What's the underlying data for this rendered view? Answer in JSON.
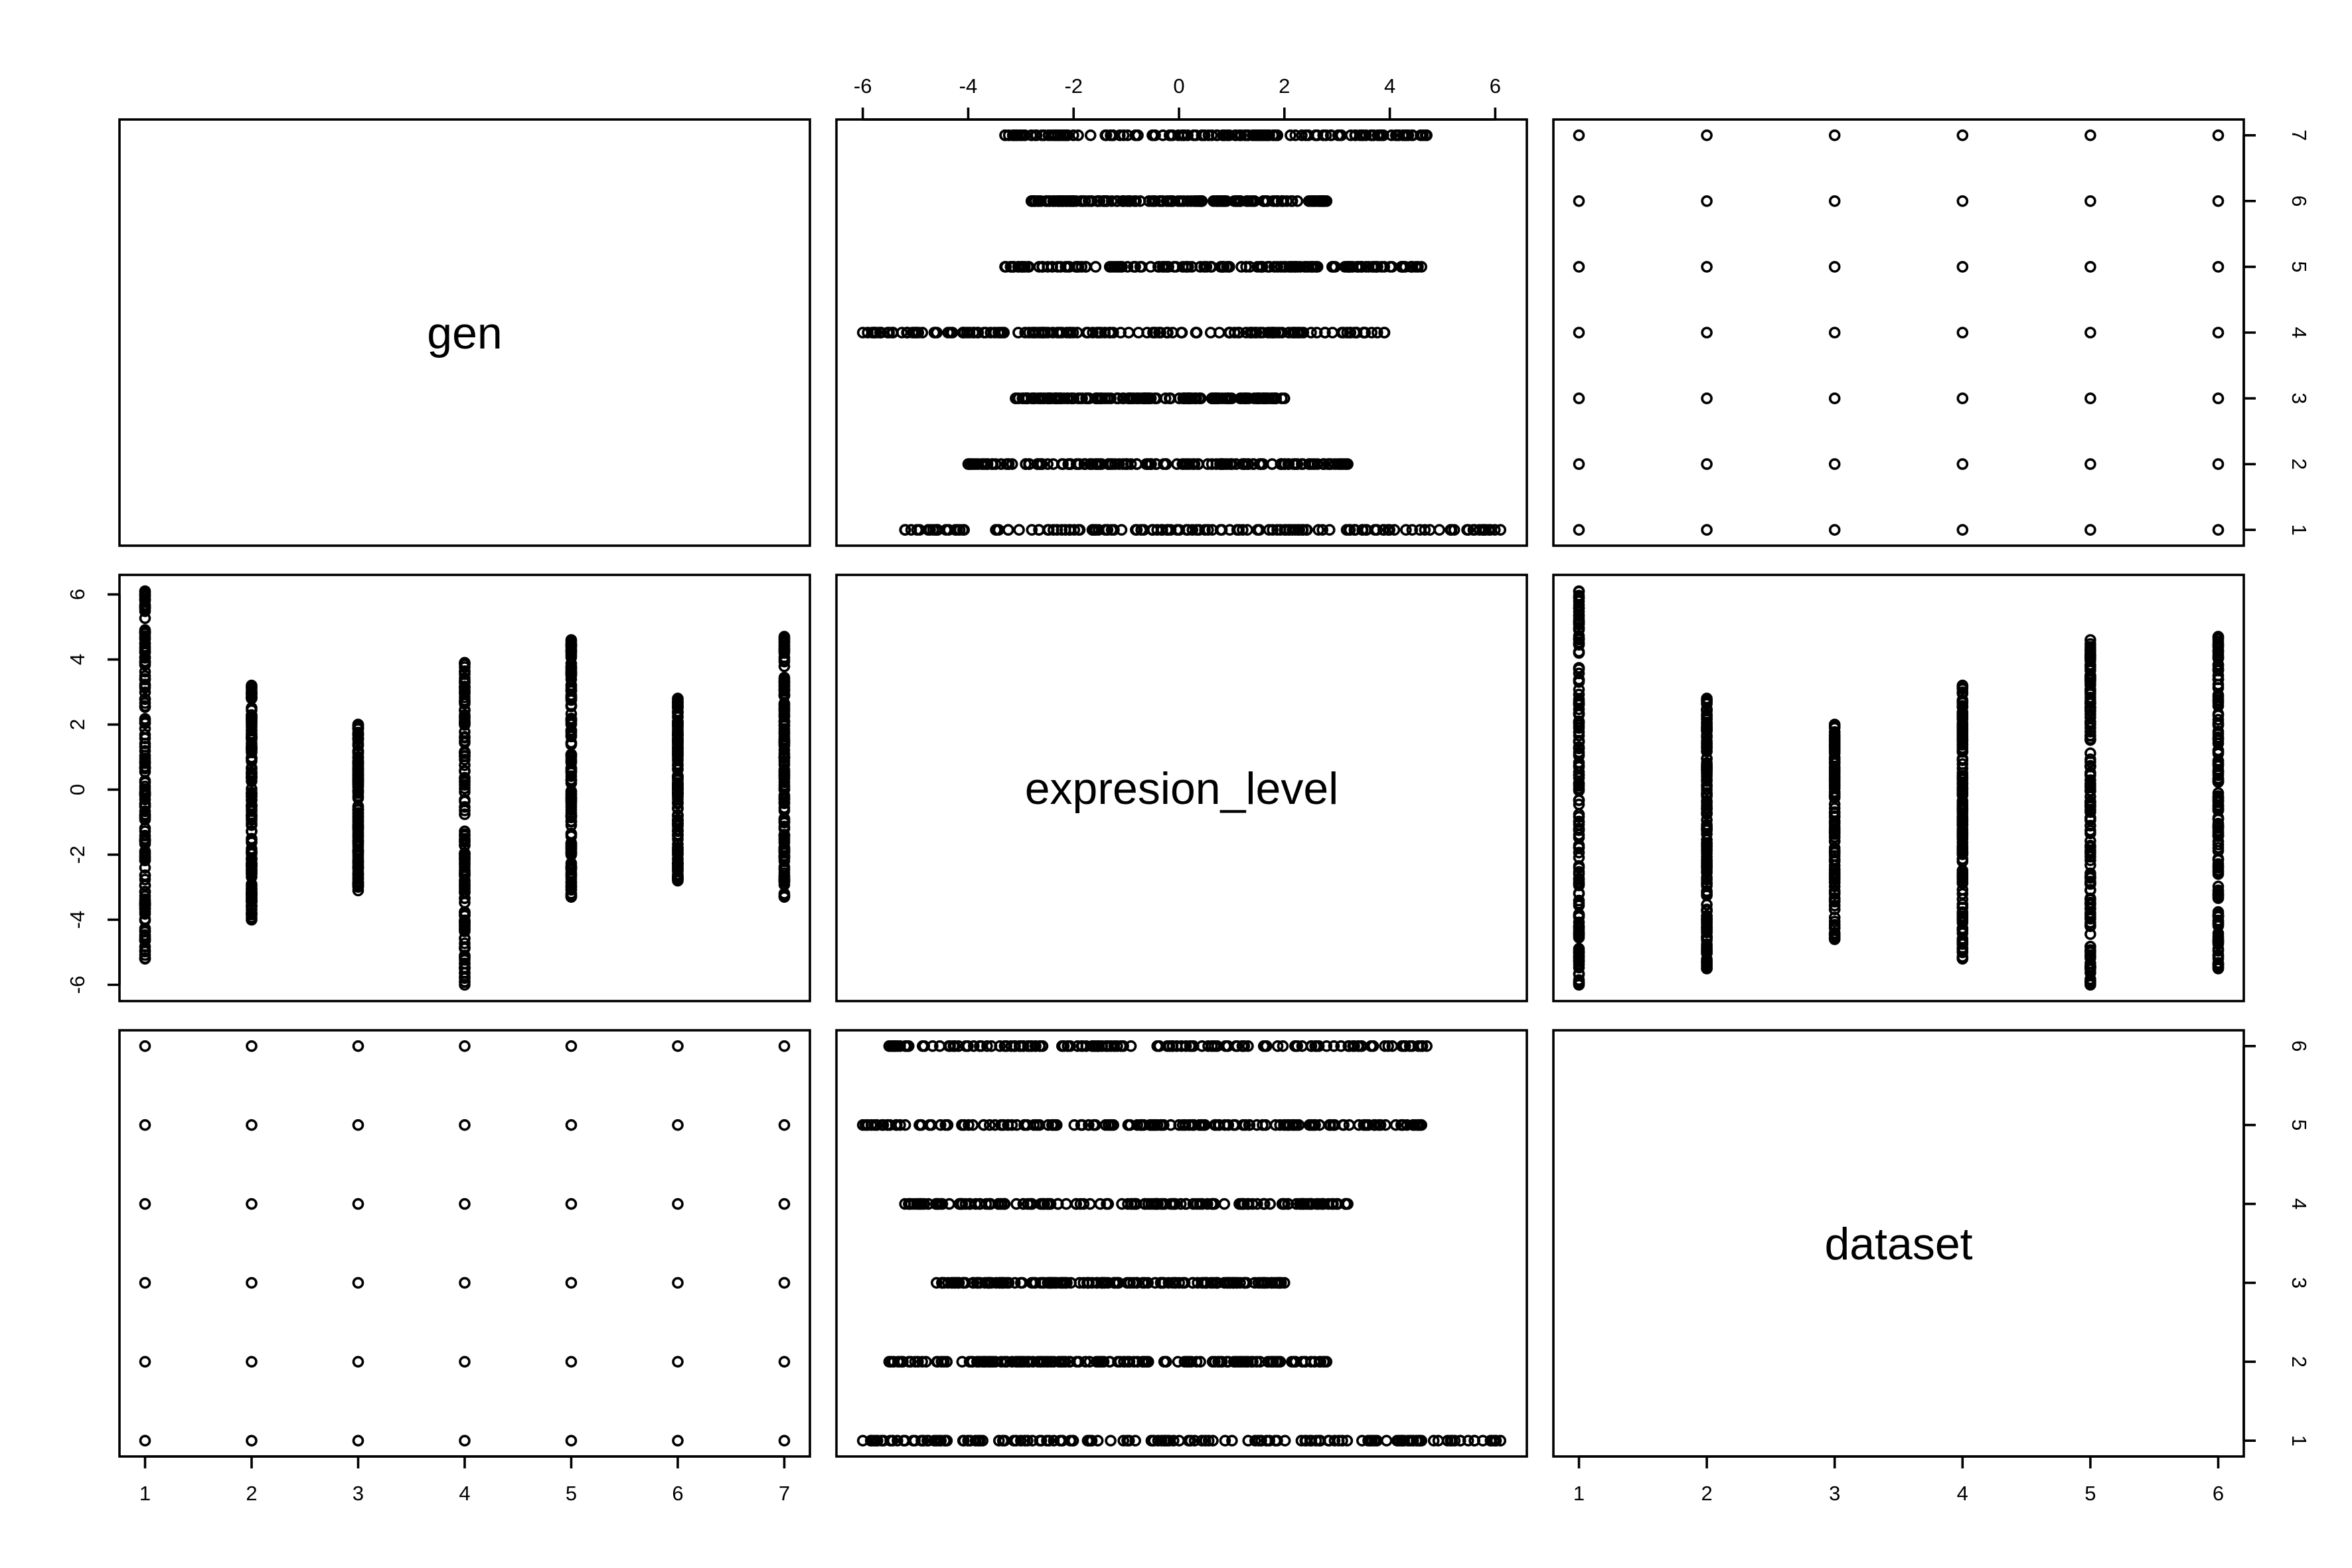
{
  "chart_data": {
    "type": "scatter",
    "subtype": "scatterplot-matrix",
    "title": "",
    "variables": [
      "gen",
      "expresion_level",
      "dataset"
    ],
    "ticks": {
      "gen": [
        1,
        2,
        3,
        4,
        5,
        6,
        7
      ],
      "expresion_level": [
        -6,
        -4,
        -2,
        0,
        2,
        4,
        6
      ],
      "dataset": [
        1,
        2,
        3,
        4,
        5,
        6
      ]
    },
    "tick_labels": {
      "gen": [
        "1",
        "2",
        "3",
        "4",
        "5",
        "6",
        "7"
      ],
      "expresion_level": [
        "-6",
        "-4",
        "-2",
        "0",
        "2",
        "4",
        "6"
      ],
      "dataset": [
        "1",
        "2",
        "3",
        "4",
        "5",
        "6"
      ]
    },
    "ranges": {
      "gen": [
        0.76,
        7.24
      ],
      "expresion_level": [
        -6.5,
        6.6
      ],
      "dataset": [
        0.8,
        6.2
      ]
    },
    "expression_range_by_gen": [
      {
        "gen": 1,
        "min": -5.2,
        "max": 6.1
      },
      {
        "gen": 2,
        "min": -4.0,
        "max": 3.2
      },
      {
        "gen": 3,
        "min": -3.1,
        "max": 2.0
      },
      {
        "gen": 4,
        "min": -6.0,
        "max": 3.9
      },
      {
        "gen": 5,
        "min": -3.3,
        "max": 4.6
      },
      {
        "gen": 6,
        "min": -2.8,
        "max": 2.8
      },
      {
        "gen": 7,
        "min": -3.3,
        "max": 4.7
      }
    ],
    "expression_range_by_dataset": [
      {
        "dataset": 1,
        "min": -6.0,
        "max": 6.1
      },
      {
        "dataset": 2,
        "min": -5.5,
        "max": 2.8
      },
      {
        "dataset": 3,
        "min": -4.6,
        "max": 2.0
      },
      {
        "dataset": 4,
        "min": -5.2,
        "max": 3.2
      },
      {
        "dataset": 5,
        "min": -6.0,
        "max": 4.6
      },
      {
        "dataset": 6,
        "min": -5.5,
        "max": 4.7
      }
    ],
    "gen_dataset_pairs": "all combinations of gen 1-7 and dataset 1-6 present",
    "grid": false,
    "legend": "none"
  }
}
